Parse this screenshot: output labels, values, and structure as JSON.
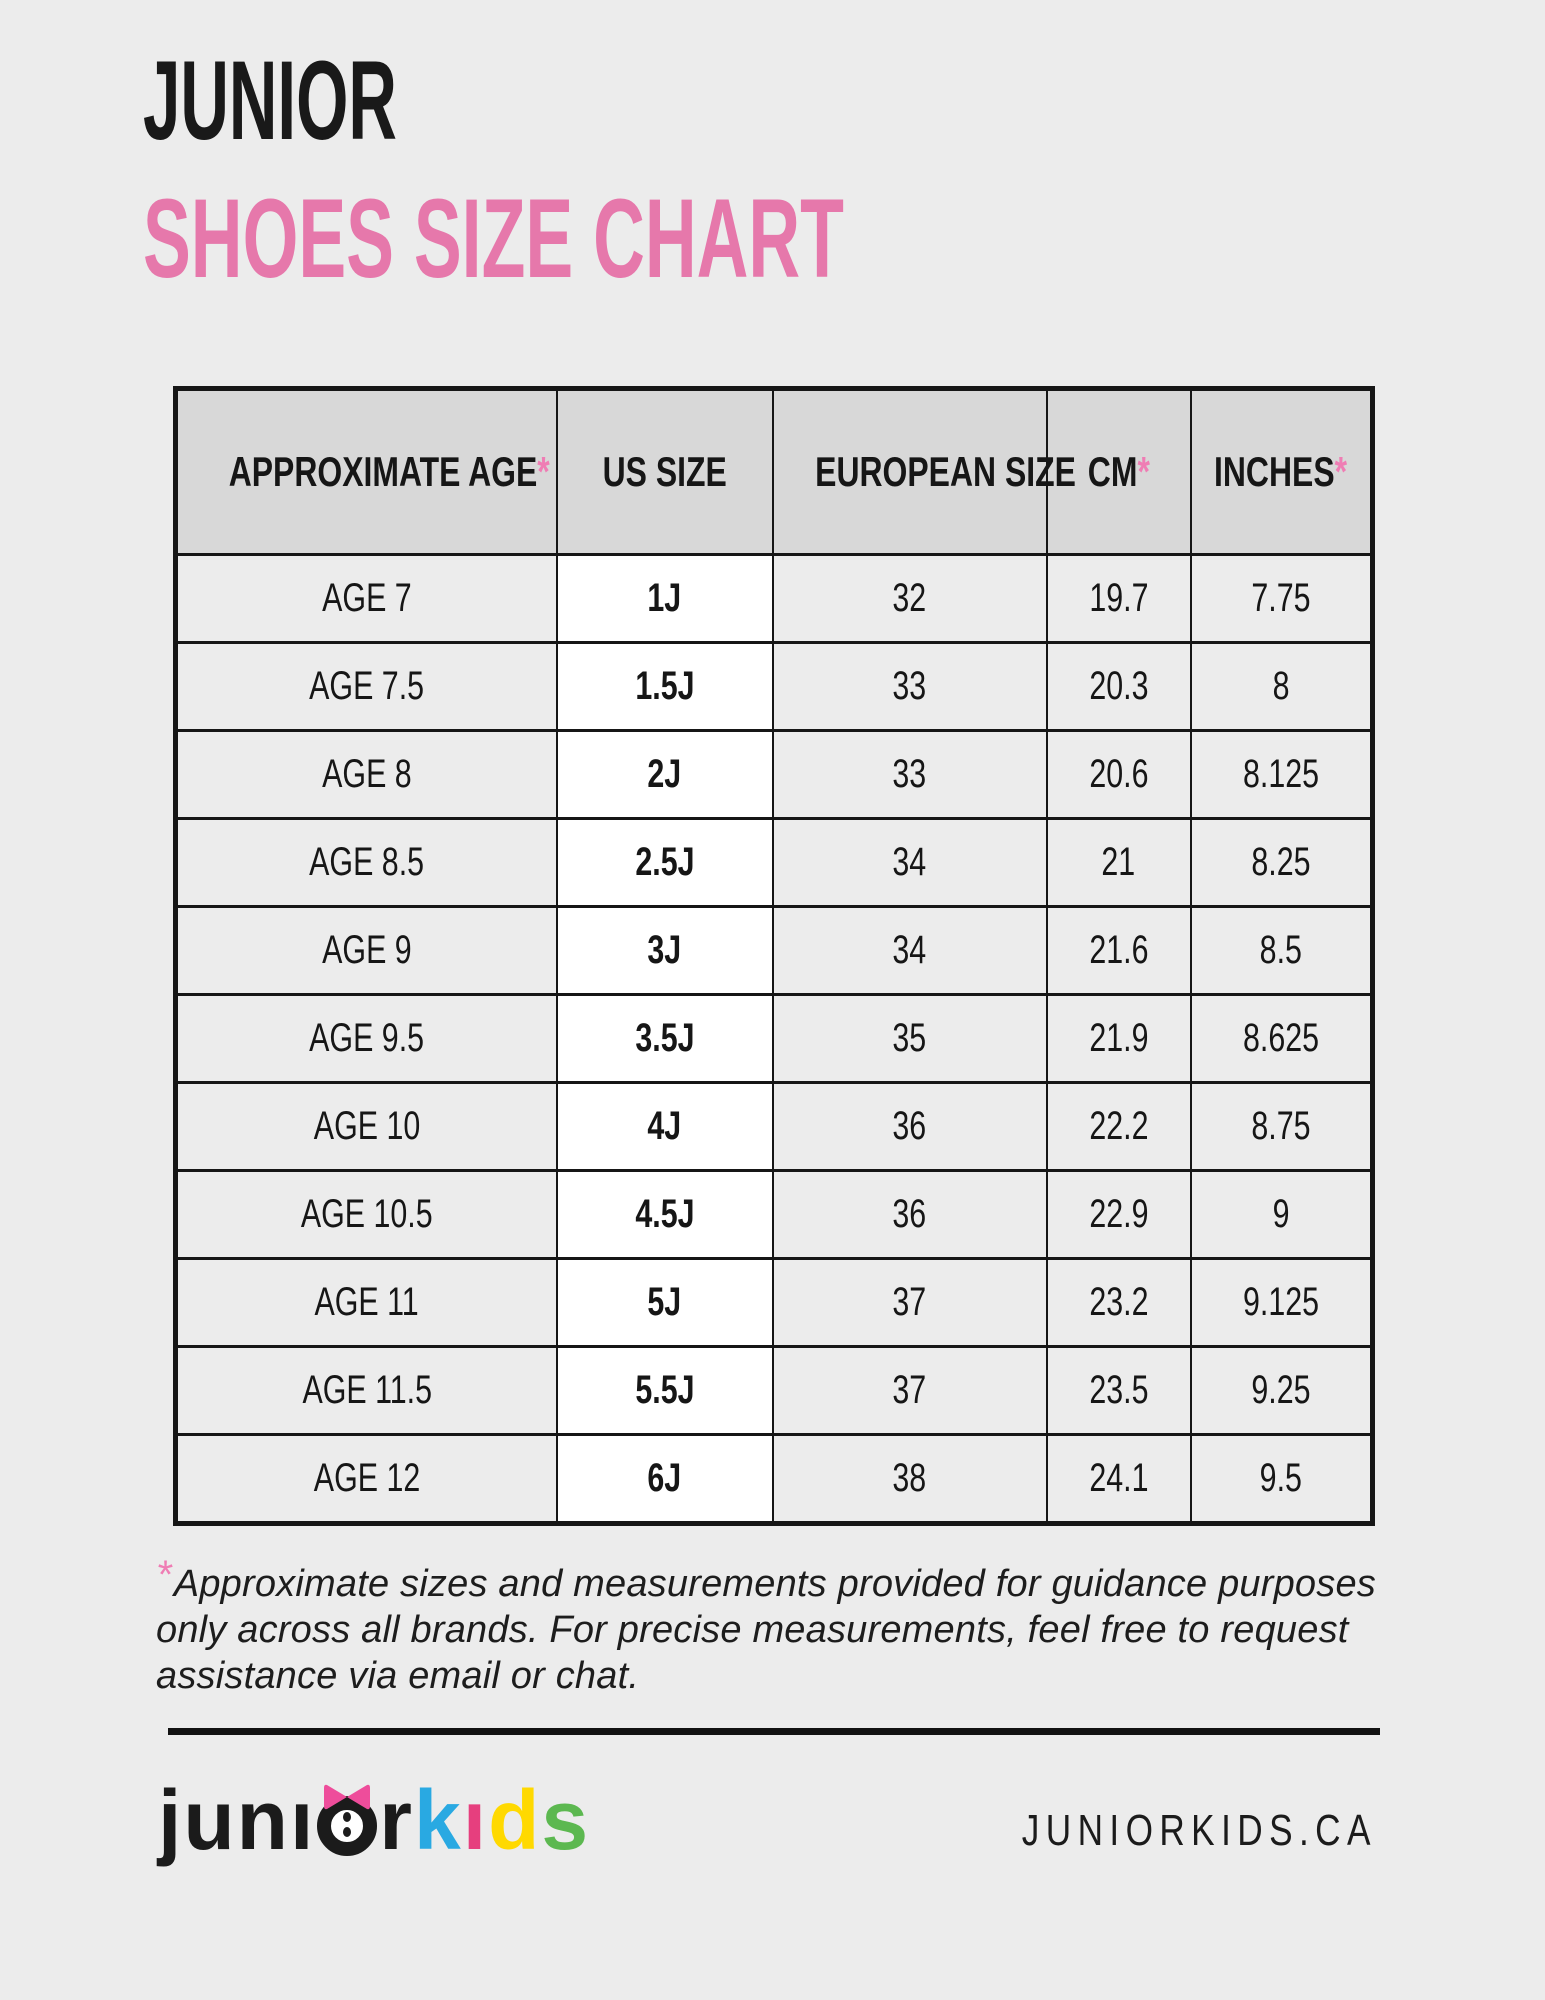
{
  "page": {
    "background": "#ececec",
    "accent_pink": "#e678ab",
    "asterisk_pink": "#ef7db4",
    "header_cell_gray": "#d8d8d8",
    "us_size_column_bg": "#ffffff"
  },
  "title": {
    "line1": "JUNIOR",
    "line2": "SHOES SIZE CHART"
  },
  "table": {
    "star": "*",
    "headers": [
      {
        "label": "APPROXIMATE AGE",
        "asterisk": true
      },
      {
        "label": "US SIZE",
        "asterisk": false
      },
      {
        "label": "EUROPEAN SIZE",
        "asterisk": false
      },
      {
        "label": "CM",
        "asterisk": true
      },
      {
        "label": "INCHES",
        "asterisk": true
      }
    ],
    "rows": [
      [
        "AGE 7",
        "1J",
        "32",
        "19.7",
        "7.75"
      ],
      [
        "AGE 7.5",
        "1.5J",
        "33",
        "20.3",
        "8"
      ],
      [
        "AGE 8",
        "2J",
        "33",
        "20.6",
        "8.125"
      ],
      [
        "AGE 8.5",
        "2.5J",
        "34",
        "21",
        "8.25"
      ],
      [
        "AGE 9",
        "3J",
        "34",
        "21.6",
        "8.5"
      ],
      [
        "AGE 9.5",
        "3.5J",
        "35",
        "21.9",
        "8.625"
      ],
      [
        "AGE 10",
        "4J",
        "36",
        "22.2",
        "8.75"
      ],
      [
        "AGE 10.5",
        "4.5J",
        "36",
        "22.9",
        "9"
      ],
      [
        "AGE 11",
        "5J",
        "37",
        "23.2",
        "9.125"
      ],
      [
        "AGE 11.5",
        "5.5J",
        "37",
        "23.5",
        "9.25"
      ],
      [
        "AGE 12",
        "6J",
        "38",
        "24.1",
        "9.5"
      ]
    ]
  },
  "footnote": {
    "asterisk": "*",
    "text": "Approximate sizes and measurements provided for guidance purposes only across all brands. For precise measurements, feel free to request assistance via email or chat."
  },
  "footer": {
    "logo": {
      "black_prefix": "junı",
      "black_suffix": "r",
      "bow_color": "#ee4d9b",
      "kids_letters": [
        {
          "ch": "k",
          "color": "#29a9e2"
        },
        {
          "ch": "ı",
          "color": "#e63f7e"
        },
        {
          "ch": "d",
          "color": "#ffd900"
        },
        {
          "ch": "s",
          "color": "#5cb850"
        }
      ]
    },
    "website": "JUNIORKIDS.CA"
  }
}
